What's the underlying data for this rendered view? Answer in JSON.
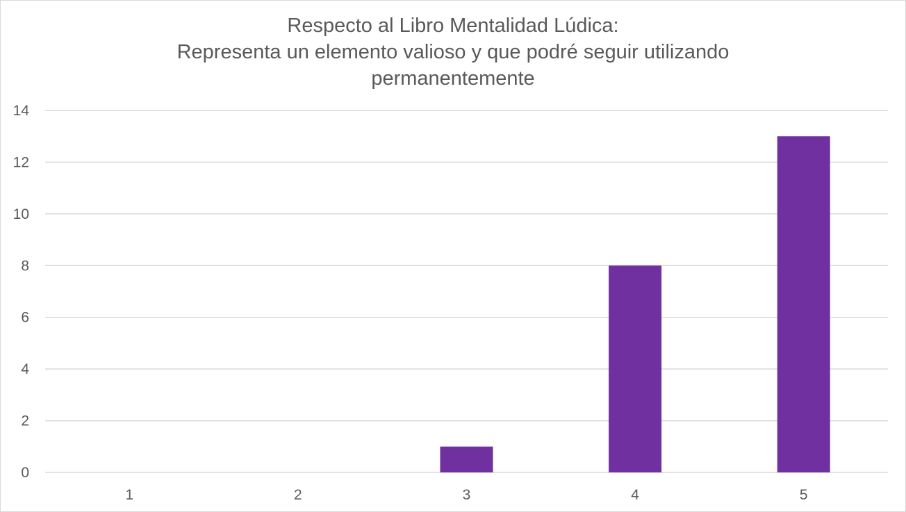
{
  "chart_data": {
    "type": "bar",
    "title_lines": [
      "Respecto al Libro Mentalidad Lúdica:",
      "Representa un elemento valioso y que podré seguir utilizando",
      "permanentemente"
    ],
    "categories": [
      "1",
      "2",
      "3",
      "4",
      "5"
    ],
    "values": [
      0,
      0,
      1,
      8,
      13
    ],
    "ylim": [
      0,
      14
    ],
    "yticks": [
      0,
      2,
      4,
      6,
      8,
      10,
      12,
      14
    ],
    "xlabel": "",
    "ylabel": "",
    "grid": true,
    "legend": "none",
    "bar_color": "#7030a0",
    "grid_color": "#d9d9d9",
    "text_color": "#595959"
  }
}
